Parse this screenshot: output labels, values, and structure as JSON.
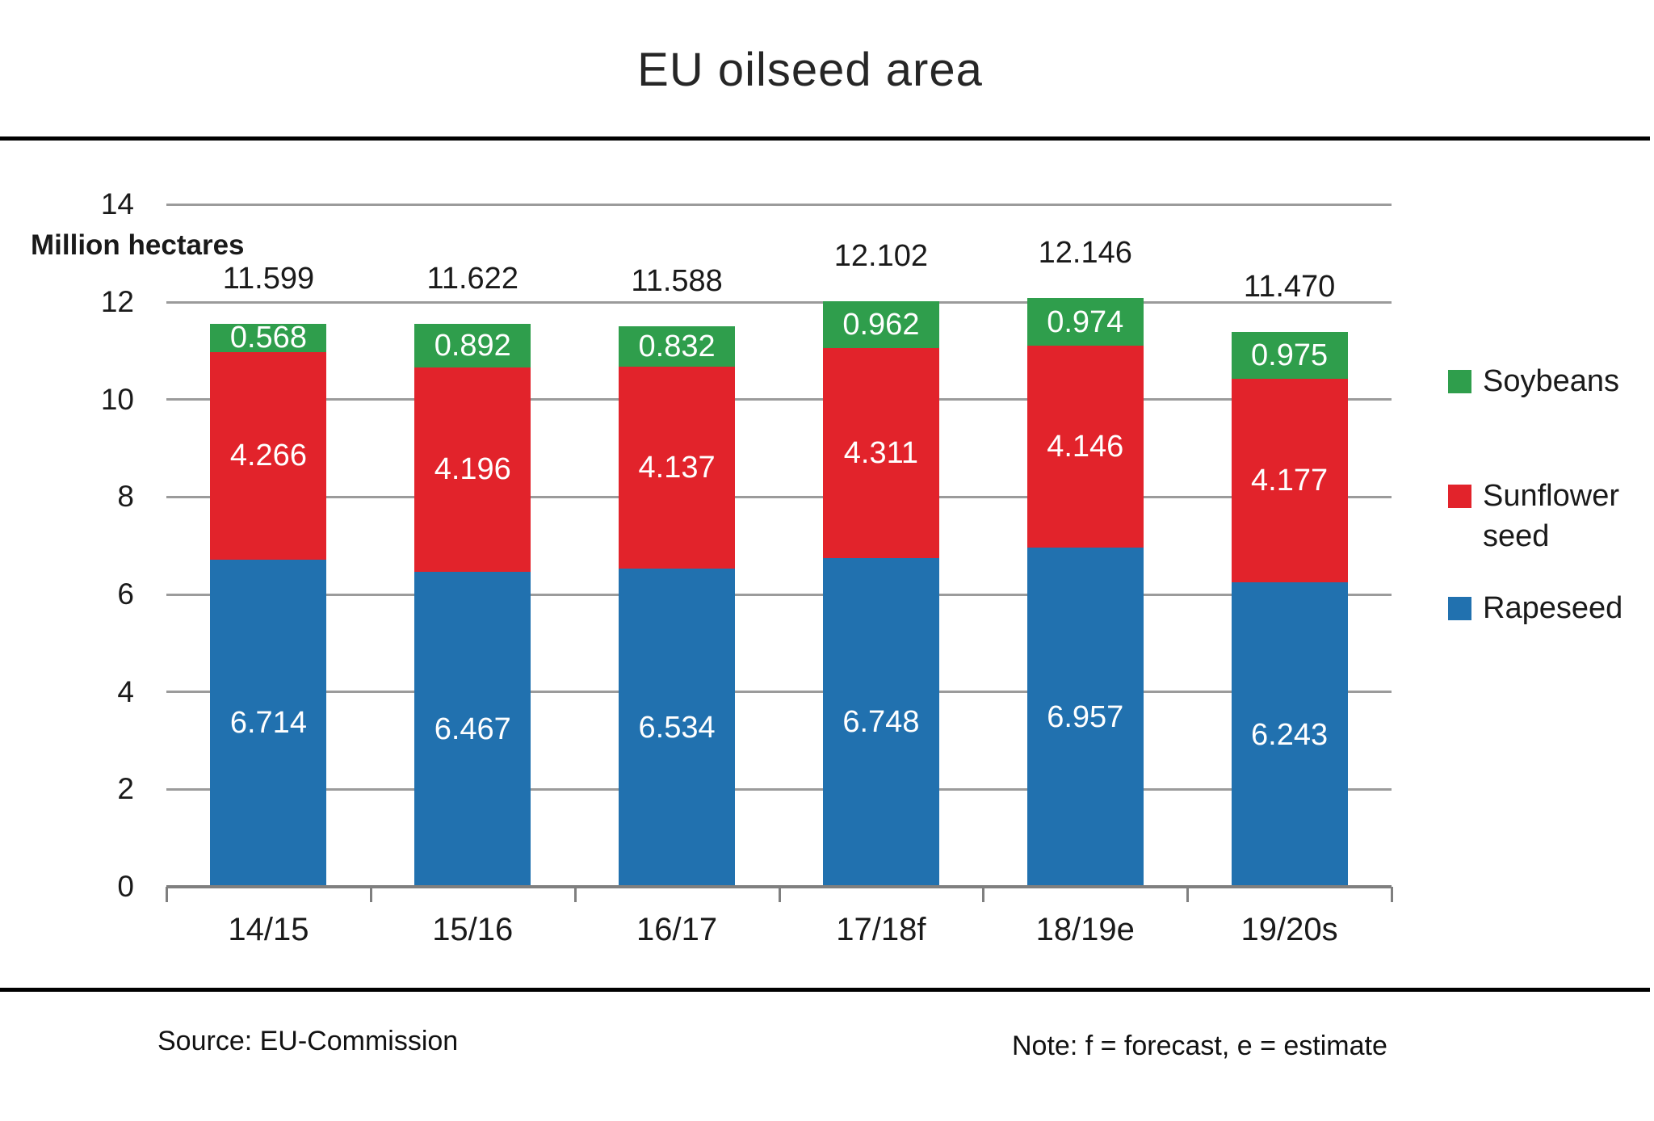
{
  "page": {
    "title": "EU oilseed area"
  },
  "y_axis": {
    "label": "Million hectares",
    "tick_values": [
      14,
      12,
      10,
      8,
      6,
      4,
      2,
      0
    ]
  },
  "chart_data": {
    "type": "bar",
    "stacked": true,
    "title": "EU oilseed area",
    "ylabel": "Million hectares",
    "ylim": [
      0,
      14
    ],
    "ytick_interval": 2,
    "grid": true,
    "legend_position": "right",
    "categories": [
      "14/15",
      "15/16",
      "16/17",
      "17/18f",
      "18/19e",
      "19/20s"
    ],
    "series": [
      {
        "name": "Rapeseed",
        "color": "#2171af",
        "values": [
          6.714,
          6.467,
          6.534,
          6.748,
          6.957,
          6.243
        ]
      },
      {
        "name": "Sunflower seed",
        "color": "#e2232b",
        "values": [
          4.266,
          4.196,
          4.137,
          4.311,
          4.146,
          4.177
        ]
      },
      {
        "name": "Soybeans",
        "color": "#2f9e4c",
        "values": [
          0.568,
          0.892,
          0.832,
          0.962,
          0.974,
          0.975
        ]
      }
    ],
    "total_labels": [
      "11.599",
      "11.622",
      "11.588",
      "12.102",
      "12.146",
      "11.470"
    ]
  },
  "legend": {
    "items": [
      "Soybeans",
      "Sunflower seed",
      "Rapeseed"
    ]
  },
  "footer": {
    "source": "Source: EU-Commission",
    "note": "Note: f = forecast, e = estimate"
  }
}
